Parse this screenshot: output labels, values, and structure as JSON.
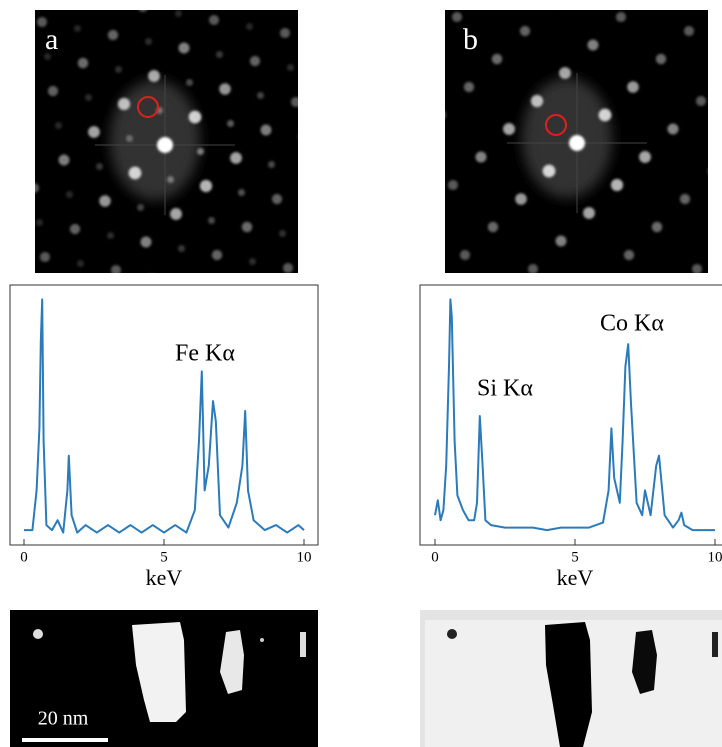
{
  "panel_labels": [
    "a",
    "b"
  ],
  "scale_bar": "20 nm",
  "chart_data": [
    {
      "type": "line",
      "x_label": "keV",
      "annotations": [
        "Fe Kα"
      ],
      "color": "#2b7bba",
      "xlim": [
        0,
        10
      ],
      "xticks": [
        0,
        5,
        10
      ],
      "ylim": [
        0,
        100
      ],
      "x": [
        0.0,
        0.3,
        0.45,
        0.55,
        0.6,
        0.65,
        0.7,
        0.8,
        1.0,
        1.2,
        1.4,
        1.55,
        1.6,
        1.7,
        1.9,
        2.2,
        2.6,
        3.0,
        3.4,
        3.8,
        4.2,
        4.6,
        5.0,
        5.4,
        5.8,
        6.1,
        6.25,
        6.35,
        6.45,
        6.6,
        6.75,
        6.85,
        7.0,
        7.3,
        7.6,
        7.8,
        7.9,
        8.0,
        8.2,
        8.6,
        9.0,
        9.4,
        9.8,
        10.0
      ],
      "values": [
        4,
        4,
        20,
        45,
        80,
        97,
        40,
        6,
        4,
        8,
        3,
        20,
        34,
        10,
        3,
        6,
        3,
        6,
        3,
        6,
        3,
        6,
        3,
        6,
        3,
        12,
        40,
        68,
        20,
        30,
        56,
        48,
        10,
        5,
        15,
        30,
        52,
        20,
        8,
        4,
        6,
        3,
        6,
        4
      ]
    },
    {
      "type": "line",
      "x_label": "keV",
      "annotations": [
        "Si Kα",
        "Co Kα"
      ],
      "color": "#2b7bba",
      "xlim": [
        0,
        10
      ],
      "xticks": [
        0,
        5,
        10
      ],
      "ylim": [
        0,
        100
      ],
      "x": [
        0.0,
        0.1,
        0.2,
        0.3,
        0.4,
        0.5,
        0.55,
        0.6,
        0.7,
        0.8,
        1.0,
        1.2,
        1.4,
        1.5,
        1.6,
        1.7,
        1.8,
        2.0,
        2.5,
        3.0,
        3.5,
        4.0,
        4.5,
        5.0,
        5.5,
        6.0,
        6.2,
        6.3,
        6.4,
        6.6,
        6.7,
        6.8,
        6.9,
        7.0,
        7.2,
        7.4,
        7.5,
        7.7,
        7.9,
        8.0,
        8.2,
        8.5,
        8.7,
        8.8,
        8.9,
        9.2,
        9.6,
        10.0
      ],
      "values": [
        10,
        16,
        8,
        12,
        30,
        70,
        97,
        90,
        40,
        18,
        12,
        8,
        8,
        15,
        50,
        30,
        8,
        6,
        5,
        5,
        5,
        4,
        5,
        5,
        5,
        7,
        20,
        45,
        25,
        15,
        40,
        70,
        79,
        55,
        15,
        10,
        20,
        10,
        30,
        34,
        10,
        5,
        8,
        11,
        6,
        4,
        4,
        4
      ]
    }
  ]
}
